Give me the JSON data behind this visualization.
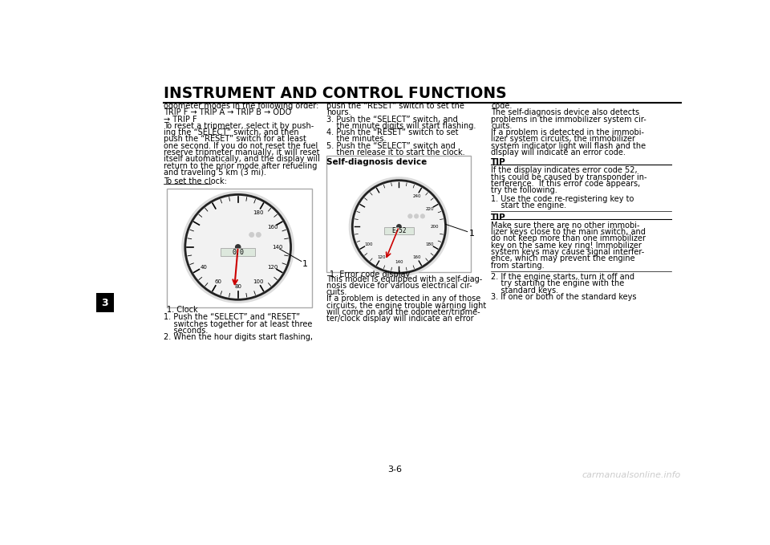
{
  "bg_color": "#ffffff",
  "title": "INSTRUMENT AND CONTROL FUNCTIONS",
  "title_fontsize": 13.5,
  "title_color": "#000000",
  "page_number": "3-6",
  "chapter_tab_number": "3",
  "watermark": "carmanualsonline.info",
  "text_fontsize": 7.0,
  "img1_caption": "1. Clock",
  "img2_caption": "1. Error code display",
  "col1_lines": [
    "odometer modes in the following order:",
    "TRIP F → TRIP A → TRIP B → ODO",
    "→ TRIP F",
    "To reset a tripmeter, select it by push-",
    "ing the “SELECT” switch, and then",
    "push the “RESET” switch for at least",
    "one second. If you do not reset the fuel",
    "reserve tripmeter manually, it will reset",
    "itself automatically, and the display will",
    "return to the prior mode after refueling",
    "and traveling 5 km (3 mi)."
  ],
  "col1_clock_label": "To set the clock:",
  "col1_num_list": [
    "1. Push the “SELECT” and “RESET”",
    "    switches together for at least three",
    "    seconds.",
    "2. When the hour digits start flashing,"
  ],
  "col2_lines": [
    "push the “RESET” switch to set the",
    "hours.",
    "3. Push the “SELECT” switch, and",
    "    the minute digits will start flashing.",
    "4. Push the “RESET” switch to set",
    "    the minutes.",
    "5. Push the “SELECT” switch and",
    "    then release it to start the clock."
  ],
  "col2_sd_header": "Self-diagnosis device",
  "col2_lower_lines": [
    "This model is equipped with a self-diag-",
    "nosis device for various electrical cir-",
    "cuits.",
    "If a problem is detected in any of those",
    "circuits, the engine trouble warning light",
    "will come on and the odometer/tripme-",
    "ter/clock display will indicate an error"
  ],
  "col3_lines": [
    "code.",
    "The self-diagnosis device also detects",
    "problems in the immobilizer system cir-",
    "cuits.",
    "If a problem is detected in the immobi-",
    "lizer system circuits, the immobilizer",
    "system indicator light will flash and the",
    "display will indicate an error code."
  ],
  "col3_tip1_header": "TIP",
  "col3_tip1_lines": [
    "If the display indicates error code 52,",
    "this could be caused by transponder in-",
    "terference.  If this error code appears,",
    "try the following."
  ],
  "col3_list1_lines": [
    "1. Use the code re-registering key to",
    "    start the engine."
  ],
  "col3_tip2_header": "TIP",
  "col3_tip2_lines": [
    "Make sure there are no other immobi-",
    "lizer keys close to the main switch, and",
    "do not keep more than one immobilizer",
    "key on the same key ring! Immobilizer",
    "system keys may cause signal interfer-",
    "ence, which may prevent the engine",
    "from starting."
  ],
  "col3_list2_lines": [
    "2. If the engine starts, turn it off and",
    "    try starting the engine with the",
    "    standard keys.",
    "3. If one or both of the standard keys"
  ]
}
